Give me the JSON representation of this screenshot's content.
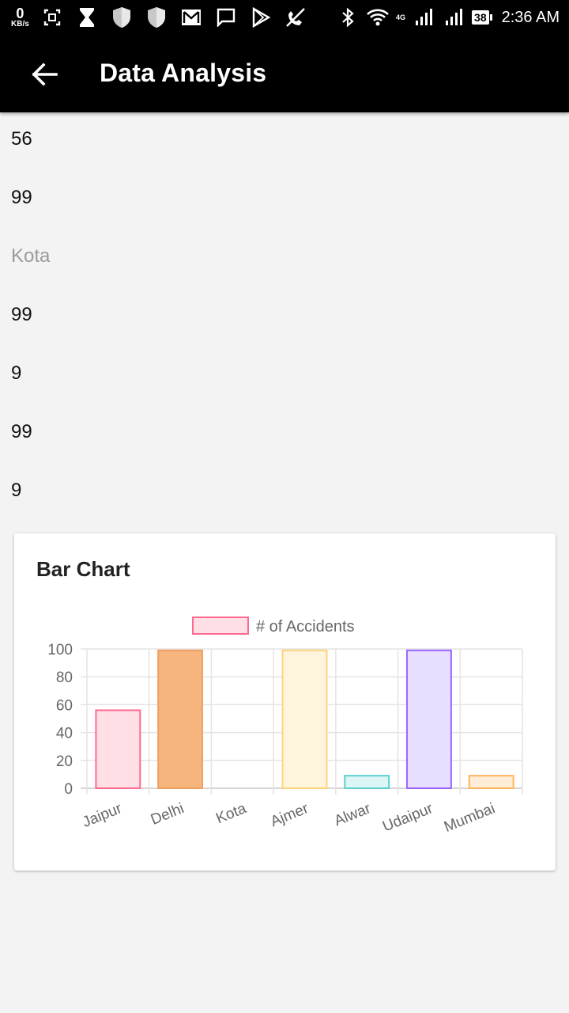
{
  "status_bar": {
    "net_speed_value": "0",
    "net_speed_unit": "KB/s",
    "network_label": "4G",
    "battery": "38",
    "time": "2:36 AM",
    "left_icons": [
      "screenshot-icon",
      "hourglass-icon",
      "shield-icon",
      "shield-icon",
      "gmail-icon",
      "message-icon",
      "play-store-icon",
      "missed-call-icon"
    ],
    "right_icons": [
      "bluetooth-icon",
      "wifi-icon",
      "signal-icon",
      "signal-icon"
    ]
  },
  "app_bar": {
    "title": "Data Analysis",
    "back_icon": "arrow-left-icon"
  },
  "values": [
    {
      "text": "56",
      "muted": false
    },
    {
      "text": "99",
      "muted": false
    },
    {
      "text": "Kota",
      "muted": true
    },
    {
      "text": "99",
      "muted": false
    },
    {
      "text": "9",
      "muted": false
    },
    {
      "text": "99",
      "muted": false
    },
    {
      "text": "9",
      "muted": false
    }
  ],
  "card": {
    "title": "Bar Chart"
  },
  "chart_data": {
    "type": "bar",
    "categories": [
      "Jaipur",
      "Delhi",
      "Kota",
      "Ajmer",
      "Alwar",
      "Udaipur",
      "Mumbai"
    ],
    "series": [
      {
        "name": "# of Accidents",
        "values": [
          56,
          99,
          0,
          99,
          9,
          99,
          9
        ]
      }
    ],
    "bar_fill_colors": [
      "#ffdfe6",
      "#f5b57d",
      "#ffe9ec",
      "#fff5dc",
      "#dcf5f5",
      "#e8deff",
      "#ffedd8"
    ],
    "bar_border_colors": [
      "#ff6b8f",
      "#f0a060",
      "#ff6b8f",
      "#ffd37a",
      "#5fcfcf",
      "#9a66ff",
      "#ffb45a"
    ],
    "legend_fill": "#ffdfe6",
    "legend_border": "#ff6b8f",
    "yticks": [
      0,
      20,
      40,
      60,
      80,
      100
    ],
    "ylim": [
      0,
      100
    ],
    "grid": true,
    "legend_position": "top"
  }
}
